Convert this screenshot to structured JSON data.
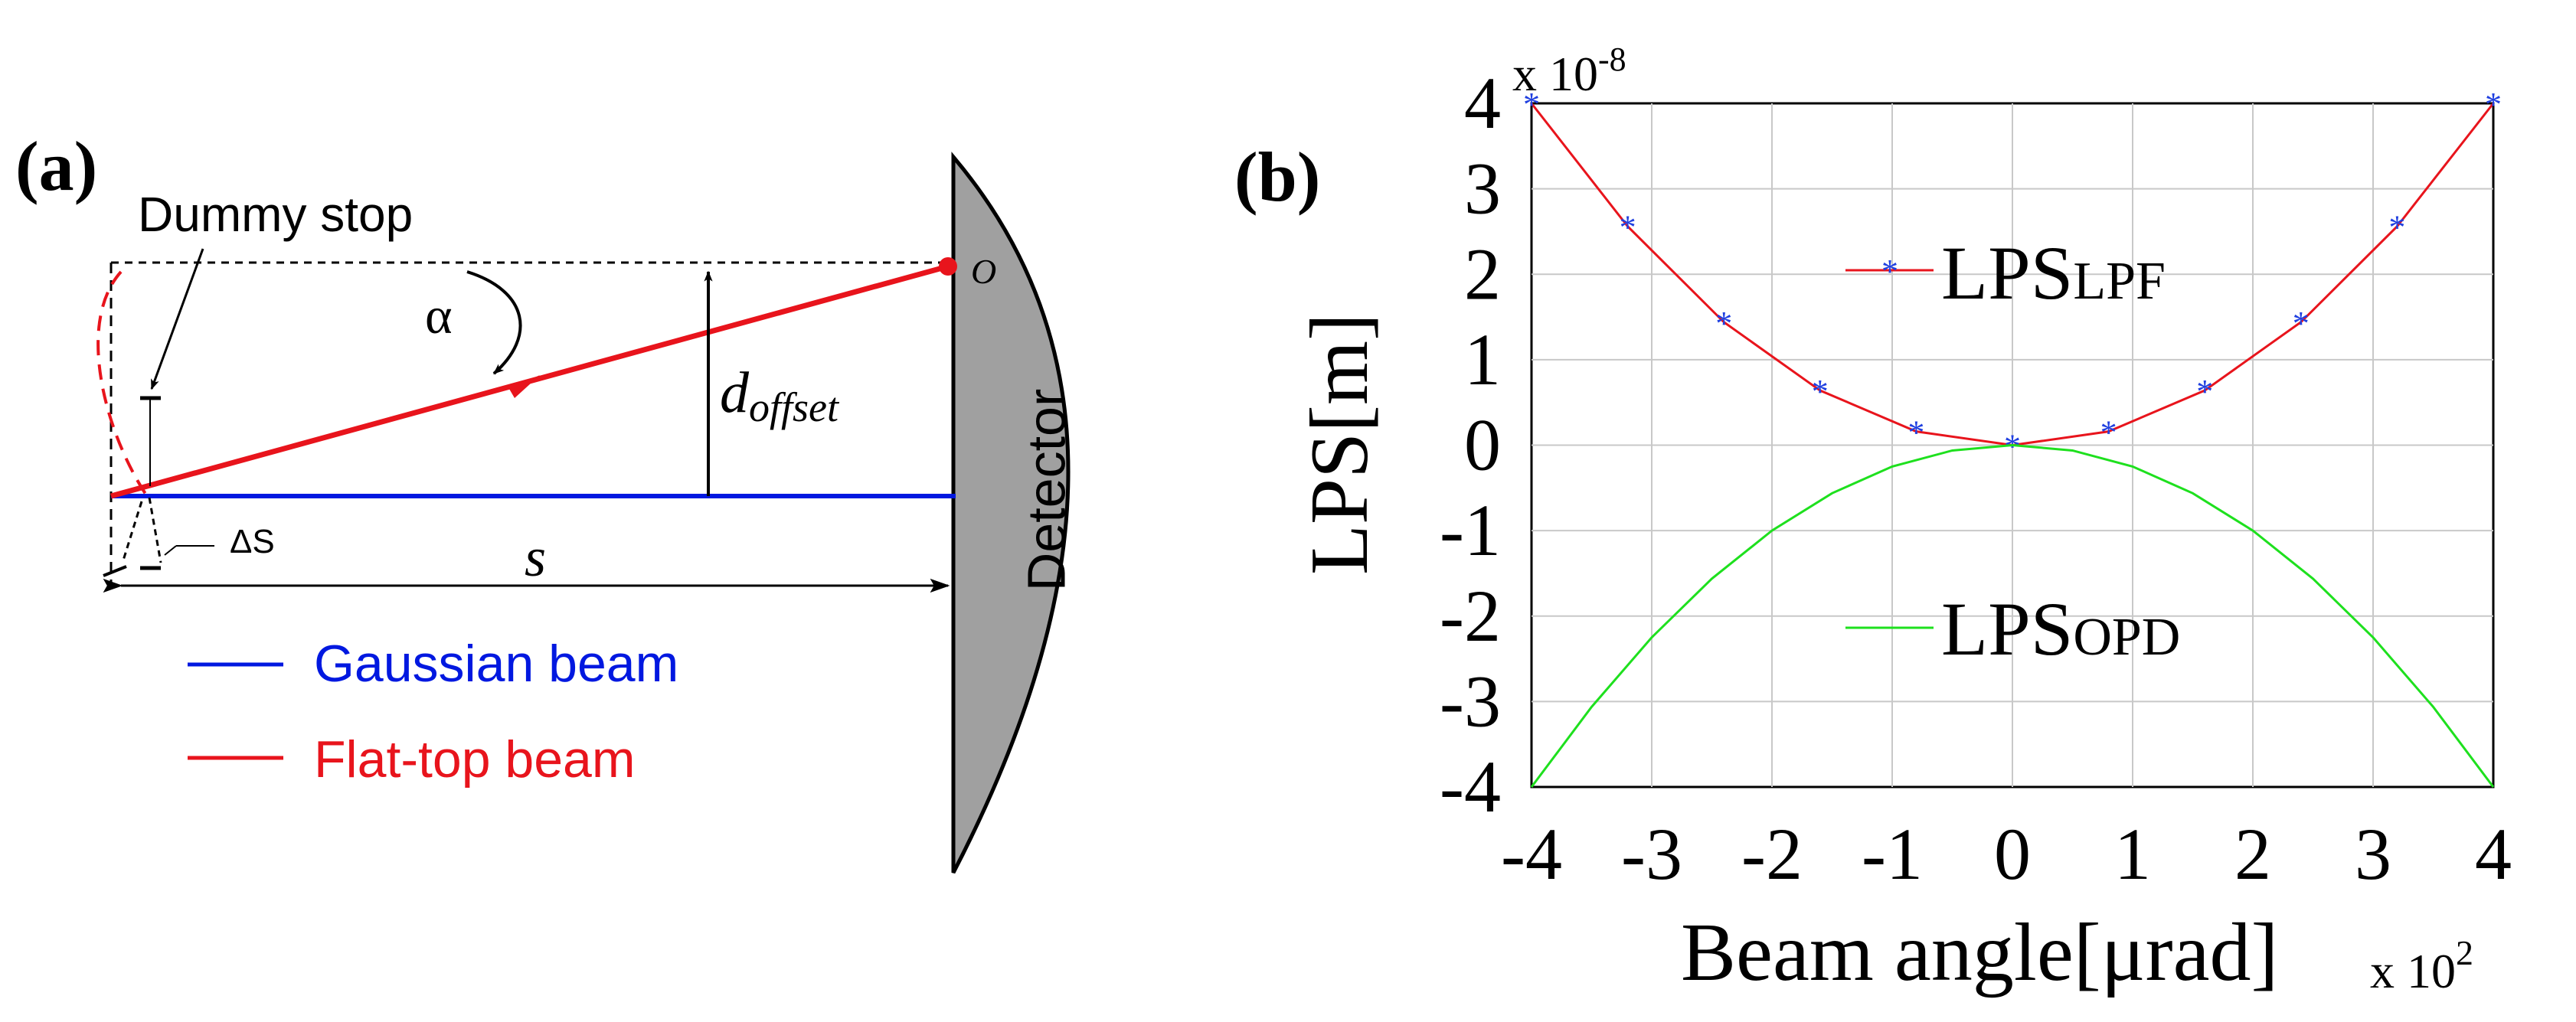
{
  "panel_a": {
    "label": "(a)",
    "dummy_stop_label": "Dummy stop",
    "alpha_label": "α",
    "origin_label": "O",
    "d_offset_main": "d",
    "d_offset_sub": "offset",
    "delta_s_label": "ΔS",
    "s_label": "s",
    "detector_label": "Detector",
    "legend": [
      {
        "label": "Gaussian beam",
        "color": "#0018e0"
      },
      {
        "label": "Flat-top beam",
        "color": "#e8141c"
      }
    ]
  },
  "panel_b": {
    "label": "(b)",
    "y_exponent_label": "x 10",
    "y_exponent_power": "-8",
    "x_exponent_label": "x 10",
    "x_exponent_power": "2",
    "legend_lpf_main": "LPS",
    "legend_lpf_sub": "LPF",
    "legend_opd_main": "LPS",
    "legend_opd_sub": "OPD"
  },
  "chart_data": {
    "type": "line",
    "title": "",
    "xlabel": "Beam angle[μrad]",
    "ylabel": "LPS[m]",
    "x_multiplier": "x 10^2",
    "y_multiplier": "x 10^-8",
    "xlim": [
      -4,
      4
    ],
    "ylim": [
      -4,
      4
    ],
    "xticks": [
      "-4",
      "-3",
      "-2",
      "-1",
      "0",
      "1",
      "2",
      "3",
      "4"
    ],
    "yticks": [
      "4",
      "3",
      "2",
      "1",
      "0",
      "-1",
      "-2",
      "-3",
      "-4"
    ],
    "grid": true,
    "series": [
      {
        "name": "LPS_LPF",
        "color": "#e8141c",
        "marker": "*",
        "marker_color": "#2040e0",
        "x": [
          -4,
          -3.2,
          -2.4,
          -1.6,
          -0.8,
          0,
          0.8,
          1.6,
          2.4,
          3.2,
          4
        ],
        "y": [
          4,
          2.56,
          1.44,
          0.64,
          0.16,
          0,
          0.16,
          0.64,
          1.44,
          2.56,
          4
        ]
      },
      {
        "name": "LPS_OPD",
        "color": "#1ee01e",
        "marker": "none",
        "x": [
          -4,
          -3.5,
          -3,
          -2.5,
          -2,
          -1.5,
          -1,
          -0.5,
          0,
          0.5,
          1,
          1.5,
          2,
          2.5,
          3,
          3.5,
          4
        ],
        "y": [
          -4,
          -3.0625,
          -2.25,
          -1.5625,
          -1,
          -0.5625,
          -0.25,
          -0.0625,
          0,
          -0.0625,
          -0.25,
          -0.5625,
          -1,
          -1.5625,
          -2.25,
          -3.0625,
          -4
        ]
      }
    ]
  }
}
